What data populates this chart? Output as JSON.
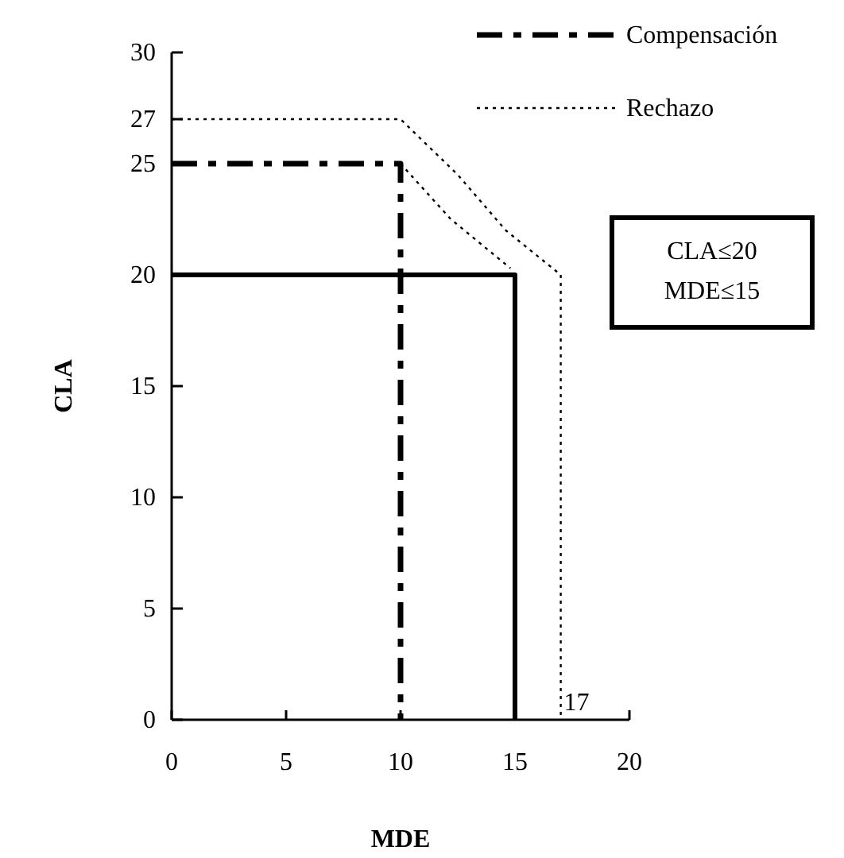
{
  "chart_data": {
    "type": "line",
    "xlabel": "MDE",
    "ylabel": "CLA",
    "xlim": [
      0,
      20
    ],
    "ylim": [
      0,
      30
    ],
    "xticks": [
      0,
      5,
      10,
      15,
      20
    ],
    "yticks": [
      0,
      5,
      10,
      15,
      20,
      25,
      27,
      30
    ],
    "grid": false,
    "legend": "top right",
    "marker": "none",
    "series": [
      {
        "color": "#000000",
        "line_style": "solid",
        "x": [
          0,
          15,
          15
        ],
        "values": [
          20,
          20,
          0
        ]
      },
      {
        "name": "Compensación",
        "color": "#000000",
        "line_style": "dashed",
        "x": [
          0,
          10,
          10
        ],
        "values": [
          25,
          25,
          0
        ]
      },
      {
        "name": "Rechazo",
        "color": "#000000",
        "line_style": "dotted",
        "x": [
          0,
          10,
          12.5,
          14.6,
          17,
          17
        ],
        "values": [
          27,
          27,
          24.5,
          22,
          20,
          0
        ]
      },
      {
        "color": "#000000",
        "line_style": "dotted",
        "x": [
          10,
          12.2,
          14.8
        ],
        "values": [
          25,
          22.5,
          20.3
        ]
      }
    ],
    "annotations": [
      "CLA≤20\nMDE≤15",
      {
        "text": "17",
        "x": 17,
        "y": 0
      }
    ]
  }
}
